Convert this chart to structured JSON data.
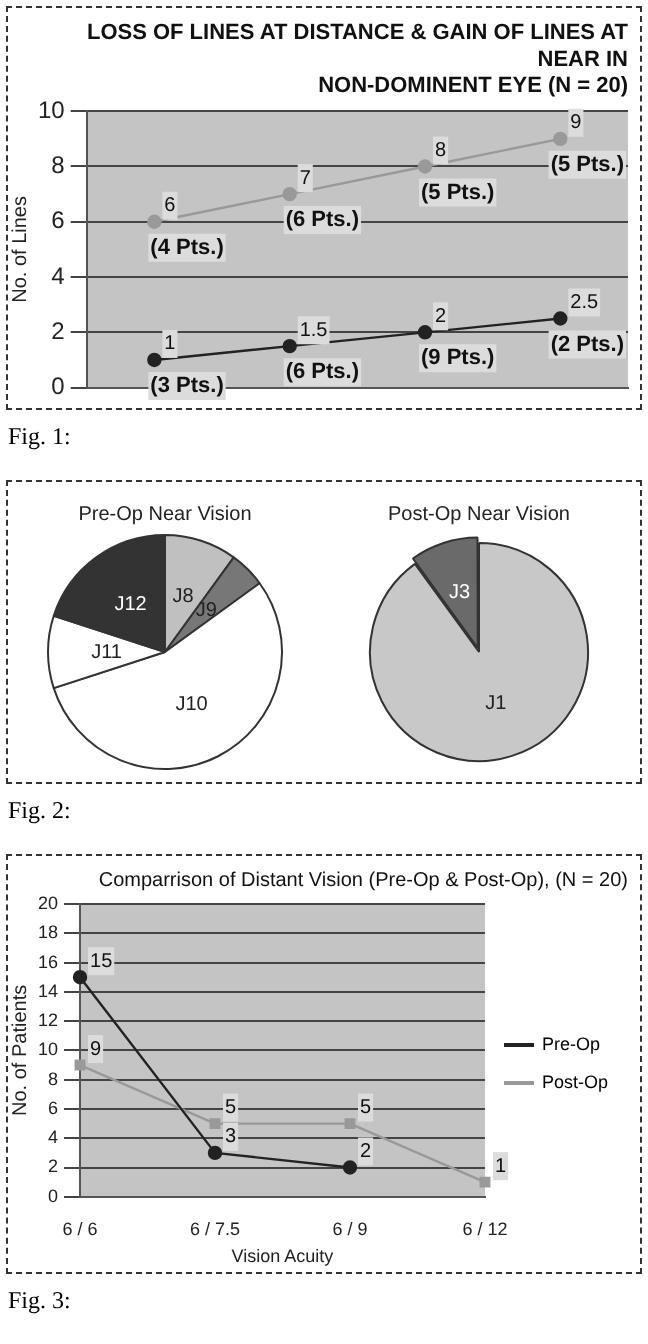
{
  "chart_data": [
    {
      "type": "line",
      "title": "LOSS OF LINES AT DISTANCE & GAIN OF LINES AT\nNEAR IN\nNON-DOMINENT EYE (N = 20)",
      "ylabel": "No. of Lines",
      "categories": [
        null,
        null,
        null,
        null
      ],
      "series": [
        {
          "color": "#999999",
          "values": [
            6,
            7,
            8,
            9
          ],
          "value_labels": [
            "6\n(4 Pts.)",
            "7\n(6 Pts.)",
            "8\n(5 Pts.)",
            "9\n(5 Pts.)"
          ]
        },
        {
          "color": "#222222",
          "values": [
            1,
            1.5,
            2,
            2.5
          ],
          "value_labels": [
            "1\n(3 Pts.)",
            "1.5\n(6 Pts.)",
            "2\n(9 Pts.)",
            "2.5\n(2 Pts.)"
          ]
        }
      ],
      "ylim": [
        0,
        10
      ],
      "yticks": [
        0,
        2,
        4,
        6,
        8,
        10
      ],
      "grid": "y",
      "marker": "circle",
      "annotations": [
        "Fig. 1:"
      ]
    },
    {
      "type": "pie",
      "title": "Pre-Op Near Vision",
      "categories": [
        "J8",
        "J9",
        "J10",
        "J11",
        "J12"
      ],
      "values": [
        10,
        5,
        55,
        10,
        20
      ],
      "colors": [
        "#c0c0c0",
        "#777777",
        "#ffffff",
        "#ffffff",
        "#333333"
      ]
    },
    {
      "type": "pie",
      "title": "Post-Op Near Vision",
      "categories": [
        "J1",
        "J3"
      ],
      "values": [
        90,
        10
      ],
      "colors": [
        "#c8c8c8",
        "#6a6a6a"
      ],
      "annotations": [
        "Fig. 2:"
      ]
    },
    {
      "type": "line",
      "title": "Comparrison of Distant Vision (Pre-Op & Post-Op), (N = 20)",
      "xlabel": "Vision Acuity",
      "ylabel": "No. of Patients",
      "categories": [
        "6 / 6",
        "6 / 7.5",
        "6 / 9",
        "6 / 12"
      ],
      "series": [
        {
          "name": "Pre-Op",
          "color": "#222222",
          "values": [
            15,
            3,
            2,
            null
          ],
          "marker": "circle"
        },
        {
          "name": "Post-Op",
          "color": "#999999",
          "values": [
            9,
            5,
            5,
            1
          ],
          "marker": "square"
        }
      ],
      "ylim": [
        0,
        20
      ],
      "yticks": [
        0,
        2,
        4,
        6,
        8,
        10,
        12,
        14,
        16,
        18,
        20
      ],
      "grid": "y",
      "legend": "right",
      "data_labels": true,
      "annotations": [
        "Fig. 3:"
      ]
    }
  ]
}
